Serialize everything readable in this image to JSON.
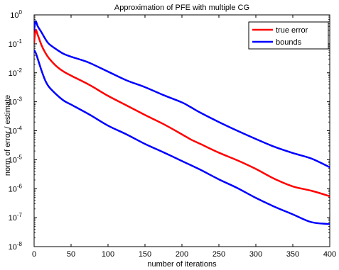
{
  "chart_data": {
    "type": "line",
    "title": "Approximation of PFE with multiple CG",
    "xlabel": "number of iterations",
    "ylabel": "norm of error / estimate",
    "xlim": [
      0,
      400
    ],
    "ylim_exponents": [
      -8,
      0
    ],
    "yscale": "log",
    "grid": false,
    "legend_position": "top-right",
    "x_ticks": [
      "0",
      "50",
      "100",
      "150",
      "200",
      "250",
      "300",
      "350",
      "400"
    ],
    "y_tick_base": "10",
    "y_tick_exponents": [
      "-8",
      "-7",
      "-6",
      "-5",
      "-4",
      "-3",
      "-2",
      "-1",
      "0"
    ],
    "legend": [
      {
        "label": "true error",
        "color": "#ff0000"
      },
      {
        "label": "bounds",
        "color": "#0000ff"
      }
    ],
    "series": [
      {
        "name": "true error",
        "color": "#ff0000",
        "x": [
          0,
          2,
          5,
          10,
          15,
          20,
          30,
          40,
          50,
          75,
          100,
          125,
          150,
          175,
          200,
          212,
          225,
          250,
          275,
          300,
          325,
          350,
          375,
          400
        ],
        "y": [
          0.11,
          0.3,
          0.2,
          0.09,
          0.05,
          0.032,
          0.017,
          0.011,
          0.008,
          0.0038,
          0.0016,
          0.00075,
          0.00035,
          0.00017,
          7.5e-05,
          5e-05,
          3.5e-05,
          1.75e-05,
          9.5e-06,
          4.8e-06,
          2.2e-06,
          1.2e-06,
          8.5e-07,
          5.5e-07
        ]
      },
      {
        "name": "bounds (upper)",
        "color": "#0000ff",
        "x": [
          0,
          2,
          5,
          10,
          15,
          20,
          30,
          40,
          50,
          60,
          75,
          100,
          125,
          150,
          175,
          200,
          212,
          225,
          250,
          275,
          300,
          325,
          350,
          375,
          400
        ],
        "y": [
          0.3,
          0.6,
          0.4,
          0.25,
          0.15,
          0.1,
          0.065,
          0.045,
          0.036,
          0.03,
          0.022,
          0.011,
          0.0055,
          0.0032,
          0.0017,
          0.00095,
          0.00065,
          0.00042,
          0.0002,
          0.0001,
          5.2e-05,
          2.8e-05,
          1.7e-05,
          1.1e-05,
          5.5e-06
        ]
      },
      {
        "name": "bounds (lower)",
        "color": "#0000ff",
        "x": [
          0,
          2,
          5,
          10,
          15,
          20,
          30,
          40,
          50,
          75,
          100,
          125,
          150,
          175,
          200,
          212,
          225,
          250,
          275,
          300,
          325,
          350,
          375,
          400
        ],
        "y": [
          0.06,
          0.05,
          0.03,
          0.012,
          0.0055,
          0.0033,
          0.0018,
          0.0011,
          0.0008,
          0.00036,
          0.00015,
          7.5e-05,
          3.5e-05,
          1.8e-05,
          9e-06,
          6.5e-06,
          4.5e-06,
          2.1e-06,
          1.05e-06,
          4.8e-07,
          2.4e-07,
          1.3e-07,
          7e-08,
          6e-08
        ]
      }
    ]
  }
}
